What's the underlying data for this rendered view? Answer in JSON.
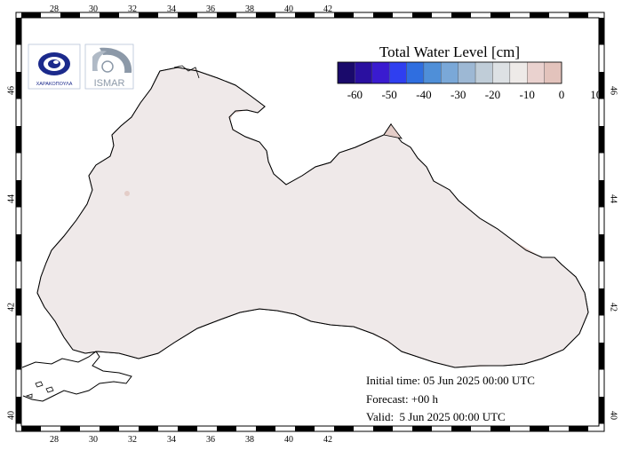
{
  "legend": {
    "title": "Total Water Level [cm]",
    "ticks": [
      "-60",
      "-50",
      "-40",
      "-30",
      "-20",
      "-10",
      "0",
      "10"
    ],
    "colors": [
      "#1a0a6b",
      "#2a10a0",
      "#3a1bd0",
      "#2f3ff0",
      "#2f6ee0",
      "#4f8fd8",
      "#7aa8d8",
      "#9db8d4",
      "#c0cdd8",
      "#dde1e4",
      "#eeeae8",
      "#ead2cf",
      "#e3c3bc"
    ]
  },
  "map": {
    "lon_ticks": [
      "28",
      "30",
      "32",
      "34",
      "36",
      "38",
      "40",
      "42"
    ],
    "lat_ticks": [
      "40",
      "42",
      "44",
      "46"
    ],
    "sea_color": "#efe9e9",
    "positive_color": "#e4cdc8",
    "strong_color": "#dcbcb4"
  },
  "logos": {
    "left_text": "ΧΑΡΑΚΟΠΟΥΛΑ",
    "right_text": "ISMAR"
  },
  "info": {
    "initial_time": "Initial time: 05 Jun 2025 00:00 UTC",
    "forecast": "Forecast: +00 h",
    "valid": "Valid:  5 Jun 2025 00:00 UTC"
  }
}
